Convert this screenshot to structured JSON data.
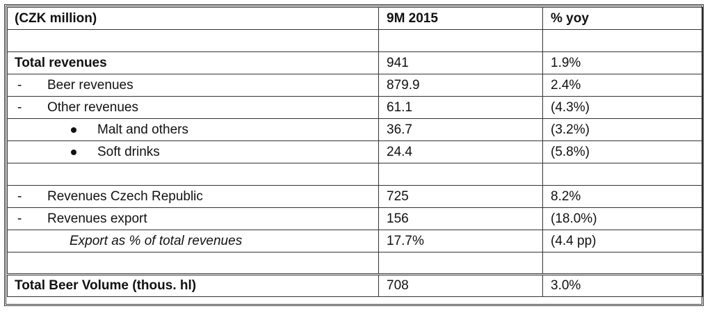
{
  "header": {
    "label": "(CZK million)",
    "col_period": "9M 2015",
    "col_yoy": "% yoy"
  },
  "rows": [
    {
      "label": "",
      "value": "",
      "yoy": ""
    },
    {
      "label": "Total revenues",
      "value": "941",
      "yoy": "1.9%"
    },
    {
      "marker": "-",
      "label": "Beer revenues",
      "value": "879.9",
      "yoy": "2.4%"
    },
    {
      "marker": "-",
      "label": "Other revenues",
      "value": "61.1",
      "yoy": "(4.3%)"
    },
    {
      "label": "Malt and others",
      "value": "36.7",
      "yoy": "(3.2%)"
    },
    {
      "label": "Soft drinks",
      "value": "24.4",
      "yoy": "(5.8%)"
    },
    {
      "label": "",
      "value": "",
      "yoy": ""
    },
    {
      "marker": "-",
      "label": "Revenues Czech Republic",
      "value": "725",
      "yoy": "8.2%"
    },
    {
      "marker": "-",
      "label": "Revenues export",
      "value": "156",
      "yoy": "(18.0%)"
    },
    {
      "label": "Export as % of total revenues",
      "value": "17.7%",
      "yoy": "(4.4 pp)"
    },
    {
      "label": "",
      "value": "",
      "yoy": ""
    },
    {
      "label": "Total Beer Volume (thous. hl)",
      "value": "708",
      "yoy": "3.0%"
    }
  ]
}
